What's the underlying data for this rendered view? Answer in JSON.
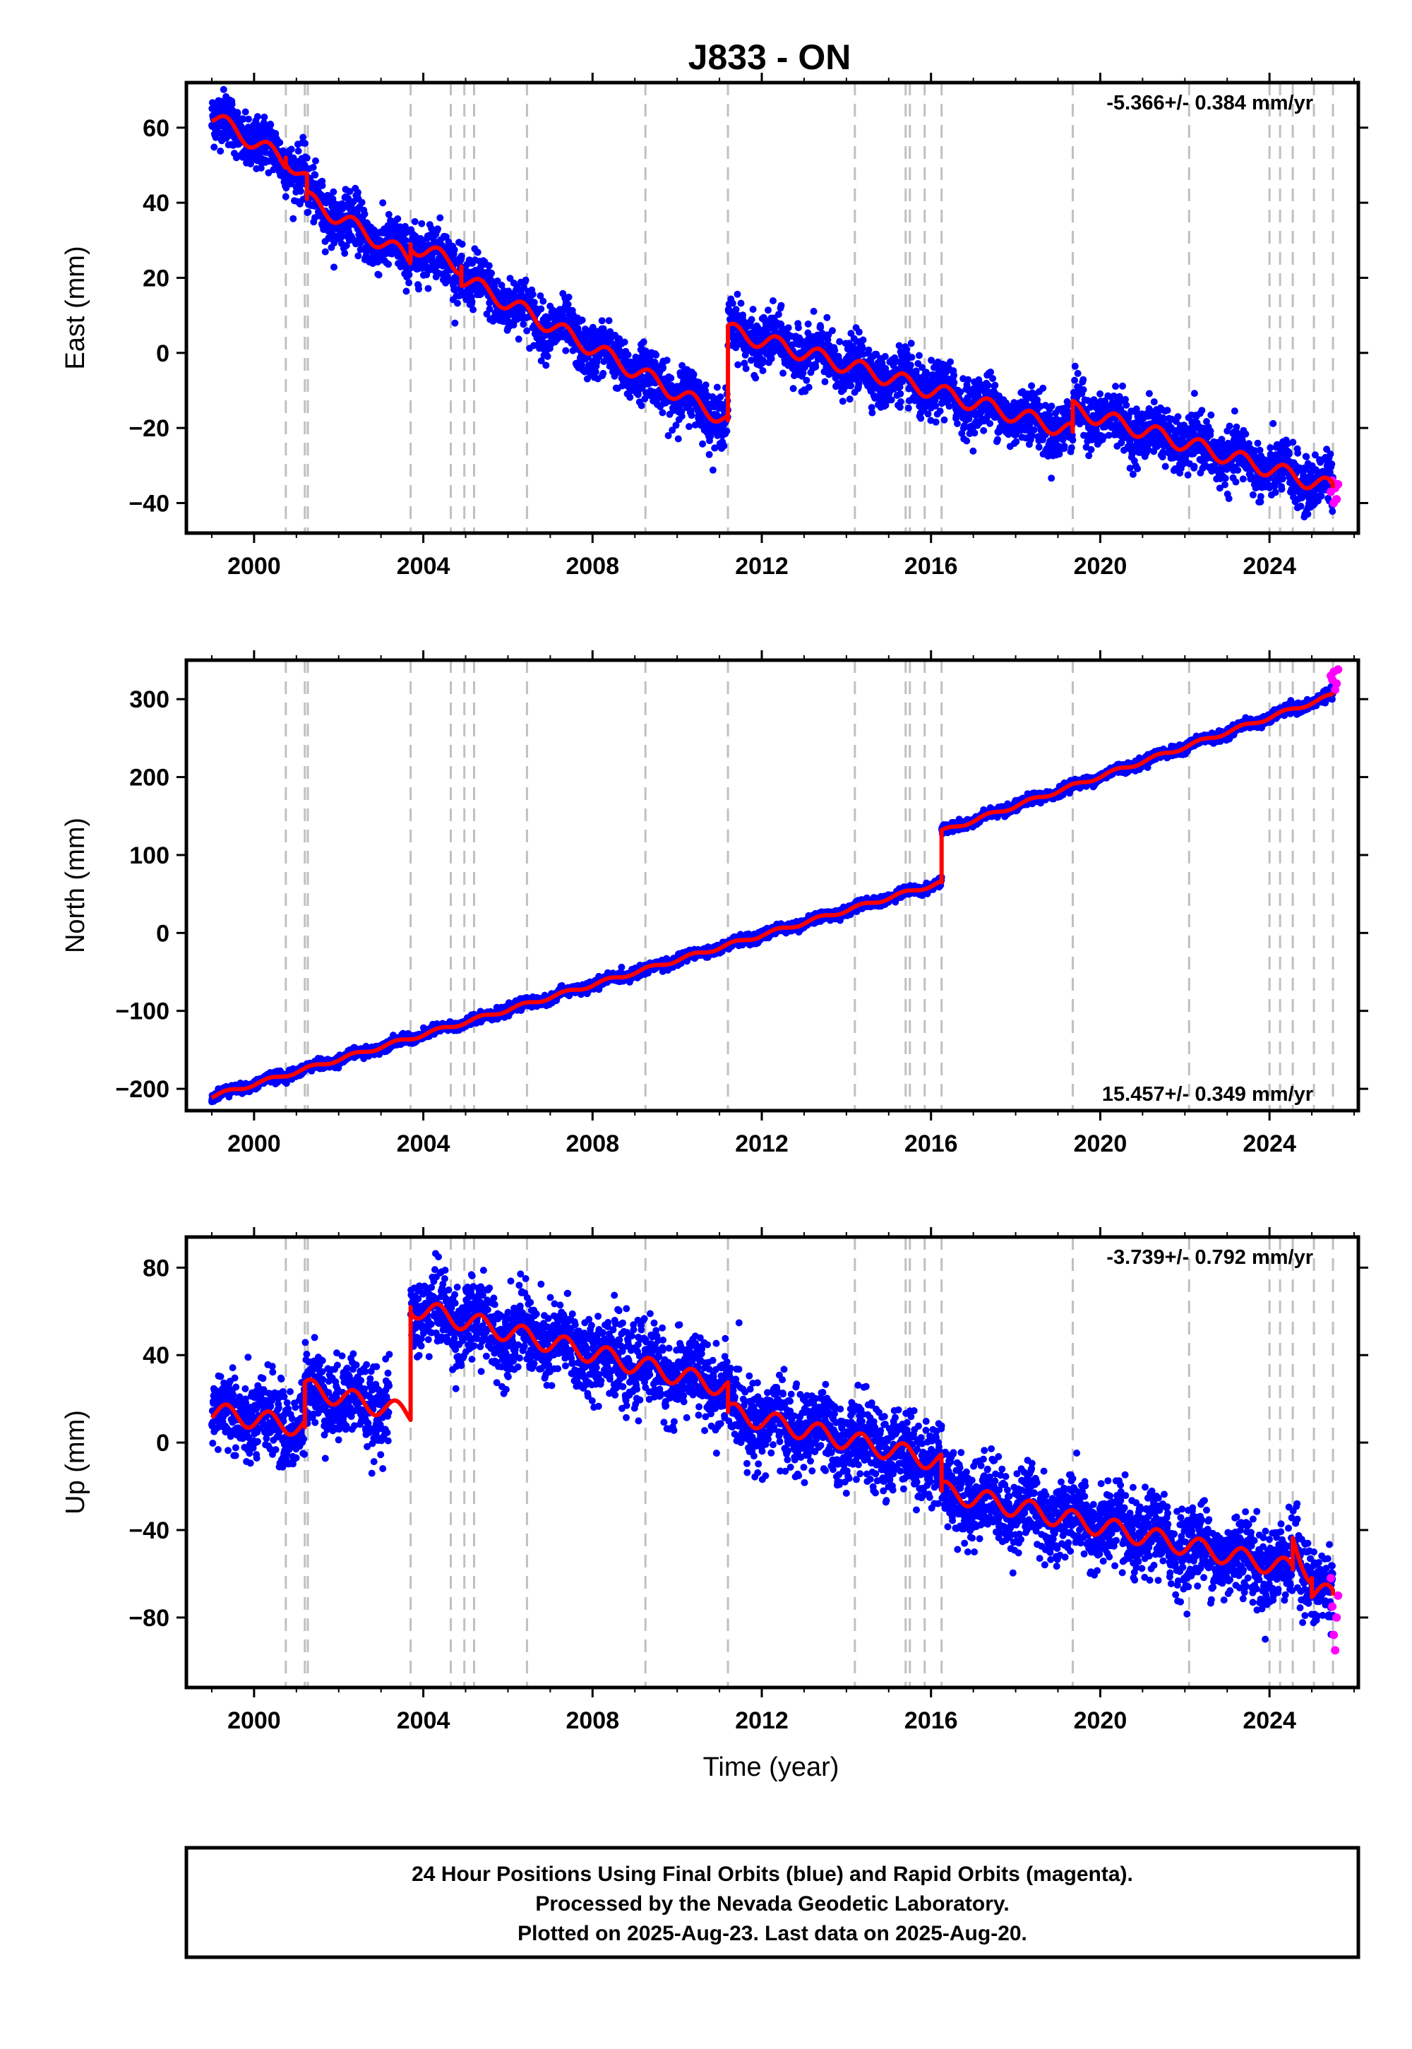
{
  "page_title": "J833 - ON",
  "footer": {
    "line1": "24 Hour Positions Using Final Orbits (blue) and Rapid Orbits (magenta).",
    "line2": "Processed by the Nevada Geodetic Laboratory.",
    "line3": "Plotted on 2025-Aug-23. Last data on 2025-Aug-20."
  },
  "colors": {
    "final_orbits": "#0000ff",
    "rapid_orbits": "#ff00ff",
    "model_fit": "#ff0000",
    "event_lines": "#c0c0c0",
    "frame": "#000000"
  },
  "event_lines_years": [
    2000.75,
    2001.2,
    2001.27,
    2003.7,
    2004.65,
    2004.97,
    2005.2,
    2006.45,
    2009.25,
    2011.2,
    2014.2,
    2015.4,
    2015.5,
    2015.85,
    2016.25,
    2019.35,
    2022.1,
    2024.0,
    2024.25,
    2024.55,
    2025.05,
    2025.5
  ],
  "chart_data": [
    {
      "type": "scatter",
      "name": "east",
      "ylabel": "East (mm)",
      "rate_label": "-5.366+/- 0.384 mm/yr",
      "rate_position": "top-right",
      "xlim": [
        1998.4,
        2026.1
      ],
      "ylim": [
        -48,
        72
      ],
      "xticks": [
        2000,
        2004,
        2008,
        2012,
        2016,
        2020,
        2024
      ],
      "yticks": [
        -40,
        -20,
        0,
        20,
        40,
        60
      ],
      "model": {
        "breakpoints": [
          {
            "x": 1999.0,
            "y_before": 63,
            "y_after": 63
          },
          {
            "x": 2000.75,
            "y_before": 51,
            "y_after": 52
          },
          {
            "x": 2001.25,
            "y_before": 46,
            "y_after": 41
          },
          {
            "x": 2003.7,
            "y_before": 25,
            "y_after": 29
          },
          {
            "x": 2004.9,
            "y_before": 23,
            "y_after": 20
          },
          {
            "x": 2011.2,
            "y_before": -18,
            "y_after": 6
          },
          {
            "x": 2019.35,
            "y_before": -21,
            "y_after": -15
          },
          {
            "x": 2025.5,
            "y_before": -36,
            "y_after": -36
          }
        ],
        "seasonal_amplitude": 2.2
      },
      "final_orbits_scatter_mm": 3.5,
      "rapid_orbits": {
        "x_start": 2025.45,
        "x_end": 2025.62,
        "y": [
          -37,
          -34,
          -40,
          -36,
          -39,
          -35
        ]
      }
    },
    {
      "type": "scatter",
      "name": "north",
      "ylabel": "North (mm)",
      "rate_label": "15.457+/- 0.349 mm/yr",
      "rate_position": "bottom-right",
      "xlim": [
        1998.4,
        2026.1
      ],
      "ylim": [
        -228,
        350
      ],
      "xticks": [
        2000,
        2004,
        2008,
        2012,
        2016,
        2020,
        2024
      ],
      "yticks": [
        -200,
        -100,
        0,
        100,
        200,
        300
      ],
      "model": {
        "breakpoints": [
          {
            "x": 1999.0,
            "y_before": -210,
            "y_after": -210
          },
          {
            "x": 2016.25,
            "y_before": 65,
            "y_after": 130
          },
          {
            "x": 2025.5,
            "y_before": 305,
            "y_after": 305
          }
        ],
        "seasonal_amplitude": 2.5
      },
      "final_orbits_scatter_mm": 3.0,
      "rapid_orbits": {
        "x_start": 2025.45,
        "x_end": 2025.62,
        "y": [
          330,
          325,
          335,
          312,
          320,
          338
        ]
      }
    },
    {
      "type": "scatter",
      "name": "up",
      "ylabel": "Up (mm)",
      "xlabel": "Time (year)",
      "rate_label": "-3.739+/- 0.792 mm/yr",
      "rate_position": "top-right",
      "xlim": [
        1998.4,
        2026.1
      ],
      "ylim": [
        -112,
        94
      ],
      "xticks": [
        2000,
        2004,
        2008,
        2012,
        2016,
        2020,
        2024
      ],
      "yticks": [
        -80,
        -40,
        0,
        40,
        80
      ],
      "model": {
        "breakpoints": [
          {
            "x": 1999.0,
            "y_before": 14,
            "y_after": 14
          },
          {
            "x": 2001.2,
            "y_before": 7,
            "y_after": 25
          },
          {
            "x": 2003.7,
            "y_before": 13,
            "y_after": 62
          },
          {
            "x": 2011.2,
            "y_before": 25,
            "y_after": 14
          },
          {
            "x": 2016.25,
            "y_before": -9,
            "y_after": -22
          },
          {
            "x": 2024.55,
            "y_before": -58,
            "y_after": -45
          },
          {
            "x": 2025.0,
            "y_before": -62,
            "y_after": -68
          },
          {
            "x": 2025.5,
            "y_before": -70,
            "y_after": -70
          }
        ],
        "seasonal_amplitude": 4.5
      },
      "final_orbits_scatter_mm": 9.0,
      "rapid_orbits": {
        "x_start": 2025.45,
        "x_end": 2025.62,
        "y": [
          -62,
          -75,
          -88,
          -95,
          -80,
          -70
        ]
      }
    }
  ]
}
